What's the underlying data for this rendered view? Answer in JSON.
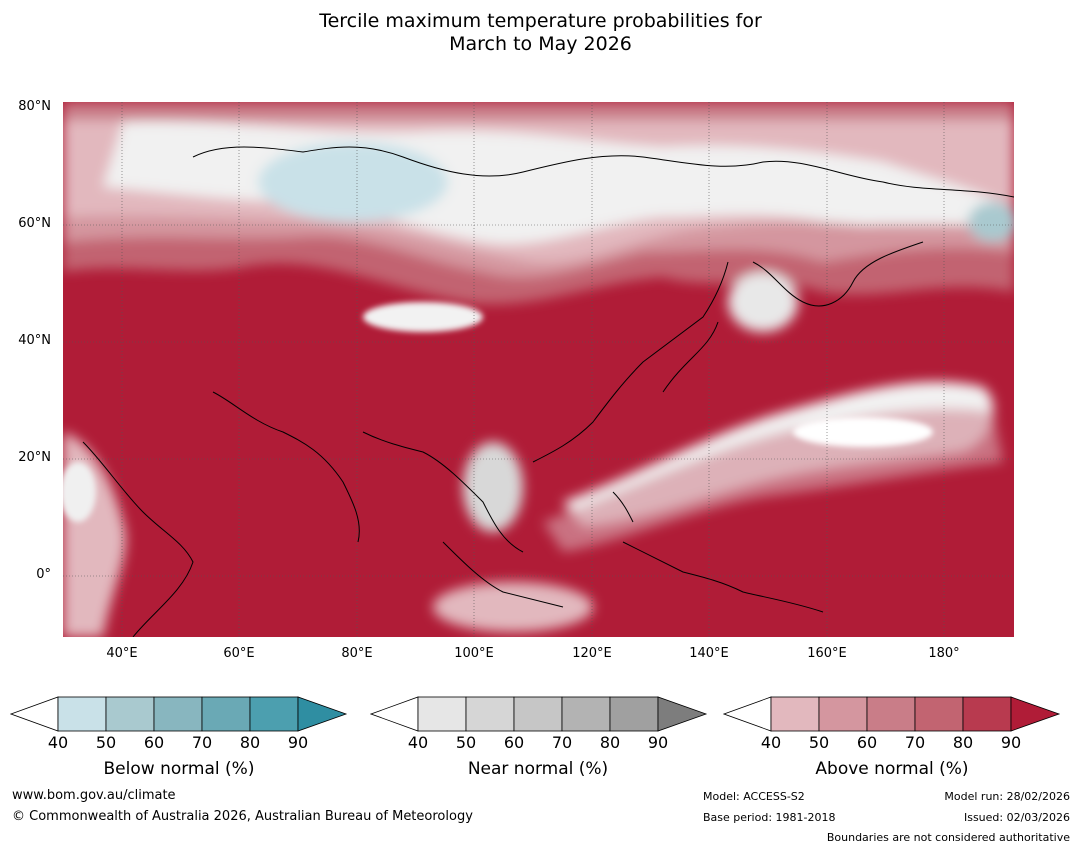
{
  "title": {
    "line1": "Tercile maximum temperature probabilities for",
    "line2": "March to May 2026"
  },
  "map": {
    "lat_labels": [
      "80°N",
      "60°N",
      "40°N",
      "20°N",
      "0°"
    ],
    "lon_labels": [
      "40°E",
      "60°E",
      "80°E",
      "100°E",
      "120°E",
      "140°E",
      "160°E",
      "180°"
    ]
  },
  "colorbars": [
    {
      "label": "Below normal (%)",
      "ticks": [
        "40",
        "50",
        "60",
        "70",
        "80",
        "90"
      ],
      "colors": [
        "#ffffff",
        "#c9e1e8",
        "#a9c9cf",
        "#88b6bf",
        "#6aa9b5",
        "#4c9faf",
        "#2f8ea2"
      ]
    },
    {
      "label": "Near normal (%)",
      "ticks": [
        "40",
        "50",
        "60",
        "70",
        "80",
        "90"
      ],
      "colors": [
        "#ffffff",
        "#e6e6e6",
        "#d6d6d6",
        "#c6c6c6",
        "#b3b3b3",
        "#a0a0a0",
        "#7d7d7d"
      ]
    },
    {
      "label": "Above normal (%)",
      "ticks": [
        "40",
        "50",
        "60",
        "70",
        "80",
        "90"
      ],
      "colors": [
        "#ffffff",
        "#e2b8be",
        "#d4969f",
        "#c97d88",
        "#c26471",
        "#b83a4f",
        "#b01c37"
      ]
    }
  ],
  "footer": {
    "url": "www.bom.gov.au/climate",
    "copyright": "© Commonwealth of Australia 2026, Australian Bureau of Meteorology",
    "model": "Model: ACCESS-S2",
    "base_period": "Base period: 1981-2018",
    "model_run": "Model run: 28/02/2026",
    "issued": "Issued: 02/03/2026",
    "boundaries": "Boundaries are not considered authoritative"
  }
}
